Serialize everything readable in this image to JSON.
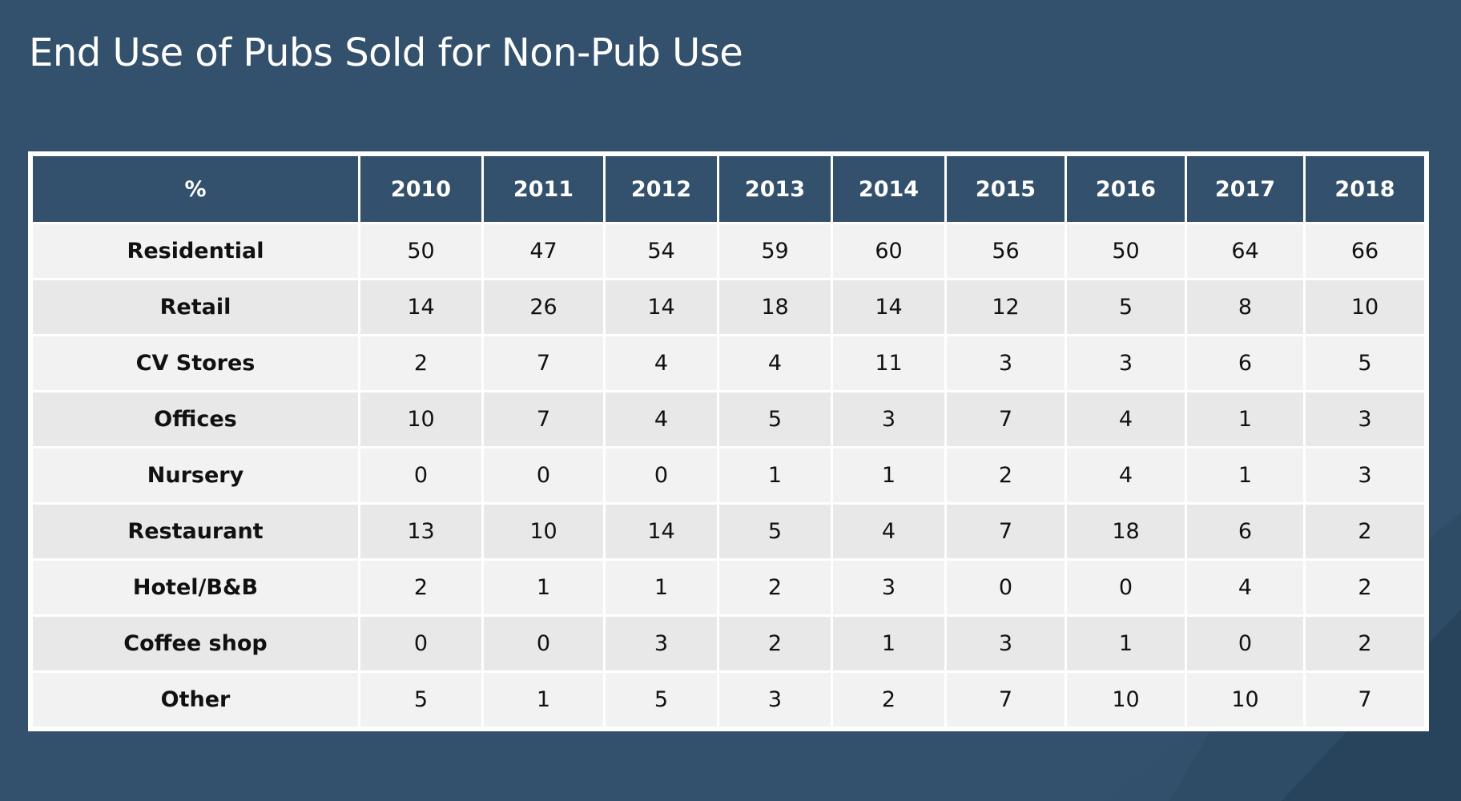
{
  "title": "End Use of Pubs Sold for Non-Pub Use",
  "chart_data": {
    "type": "table",
    "title": "End Use of Pubs Sold for Non-Pub Use",
    "corner_label": "%",
    "columns": [
      "2010",
      "2011",
      "2012",
      "2013",
      "2014",
      "2015",
      "2016",
      "2017",
      "2018"
    ],
    "rows": [
      {
        "label": "Residential",
        "values": [
          50,
          47,
          54,
          59,
          60,
          56,
          50,
          64,
          66
        ]
      },
      {
        "label": "Retail",
        "values": [
          14,
          26,
          14,
          18,
          14,
          12,
          5,
          8,
          10
        ]
      },
      {
        "label": "CV Stores",
        "values": [
          2,
          7,
          4,
          4,
          11,
          3,
          3,
          6,
          5
        ]
      },
      {
        "label": "Offices",
        "values": [
          10,
          7,
          4,
          5,
          3,
          7,
          4,
          1,
          3
        ]
      },
      {
        "label": "Nursery",
        "values": [
          0,
          0,
          0,
          1,
          1,
          2,
          4,
          1,
          3
        ]
      },
      {
        "label": "Restaurant",
        "values": [
          13,
          10,
          14,
          5,
          4,
          7,
          18,
          6,
          2
        ]
      },
      {
        "label": "Hotel/B&B",
        "values": [
          2,
          1,
          1,
          2,
          3,
          0,
          0,
          4,
          2
        ]
      },
      {
        "label": "Coffee shop",
        "values": [
          0,
          0,
          3,
          2,
          1,
          3,
          1,
          0,
          2
        ]
      },
      {
        "label": "Other",
        "values": [
          5,
          1,
          5,
          3,
          2,
          7,
          10,
          10,
          7
        ]
      }
    ]
  },
  "colors": {
    "background": "#33506c",
    "header": "#33506c",
    "row_light": "#f2f2f2",
    "row_dark": "#e8e8e8"
  }
}
